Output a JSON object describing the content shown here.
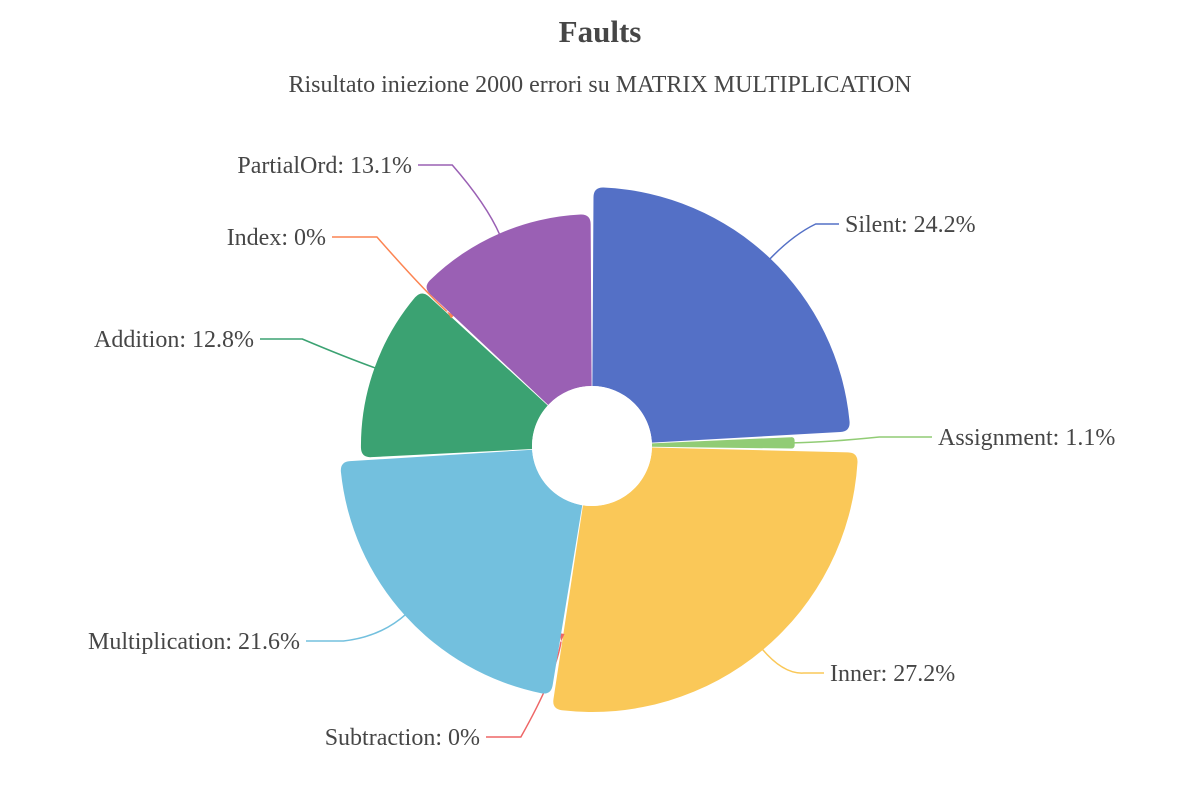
{
  "chart_data": {
    "type": "pie",
    "style": "rose-donut",
    "title": "Faults",
    "subtitle": "Risultato iniezione 2000 errori su MATRIX MULTIPLICATION",
    "slices": [
      {
        "name": "Silent",
        "value": 24.2,
        "label": "Silent: 24.2%",
        "color": "#5470c6"
      },
      {
        "name": "Assignment",
        "value": 1.1,
        "label": "Assignment: 1.1%",
        "color": "#91cc75"
      },
      {
        "name": "Inner",
        "value": 27.2,
        "label": "Inner: 27.2%",
        "color": "#fac858"
      },
      {
        "name": "Subtraction",
        "value": 0,
        "label": "Subtraction: 0%",
        "color": "#ee6666"
      },
      {
        "name": "Multiplication",
        "value": 21.6,
        "label": "Multiplication: 21.6%",
        "color": "#73c0de"
      },
      {
        "name": "Addition",
        "value": 12.8,
        "label": "Addition: 12.8%",
        "color": "#3ba272"
      },
      {
        "name": "Index",
        "value": 0,
        "label": "Index: 0%",
        "color": "#fc8452"
      },
      {
        "name": "PartialOrd",
        "value": 13.1,
        "label": "PartialOrd: 13.1%",
        "color": "#9a60b4"
      }
    ]
  }
}
